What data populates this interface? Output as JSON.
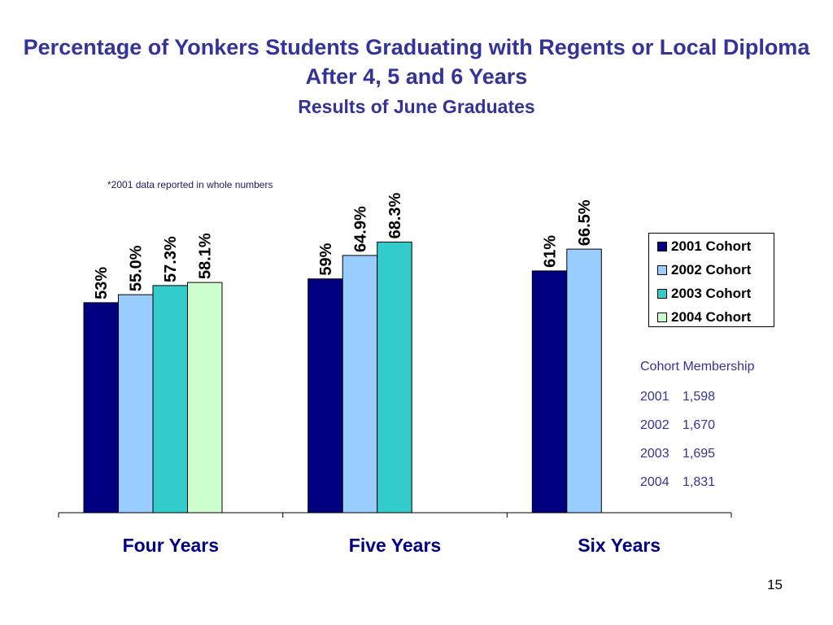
{
  "title": "Percentage of Yonkers Students Graduating with Regents or Local Diploma After 4, 5 and 6 Years",
  "subtitle": "Results of June Graduates",
  "note": "*2001 data reported in whole numbers",
  "page_number": "15",
  "colors": {
    "title": "#333399",
    "2001 Cohort": "#000080",
    "2002 Cohort": "#99CCFF",
    "2003 Cohort": "#33CCCC",
    "2004 Cohort": "#CCFFCC"
  },
  "chart_data": {
    "type": "bar",
    "title": "Percentage of Yonkers Students Graduating with Regents or Local Diploma After 4, 5 and 6 Years",
    "subtitle": "Results of June Graduates",
    "categories": [
      "Four Years",
      "Five Years",
      "Six Years"
    ],
    "ylim": [
      0,
      100
    ],
    "grid": false,
    "legend_position": "right",
    "series": [
      {
        "name": "2001 Cohort",
        "values": [
          53,
          59,
          61
        ],
        "labels": [
          "53%",
          "59%",
          "61%"
        ]
      },
      {
        "name": "2002 Cohort",
        "values": [
          55.0,
          64.9,
          66.5
        ],
        "labels": [
          "55.0%",
          "64.9%",
          "66.5%"
        ]
      },
      {
        "name": "2003 Cohort",
        "values": [
          57.3,
          68.3,
          null
        ],
        "labels": [
          "57.3%",
          "68.3%",
          null
        ]
      },
      {
        "name": "2004 Cohort",
        "values": [
          58.1,
          null,
          null
        ],
        "labels": [
          "58.1%",
          null,
          null
        ]
      }
    ]
  },
  "cohort_membership": {
    "heading": "Cohort Membership",
    "rows": [
      {
        "year": "2001",
        "count": "1,598"
      },
      {
        "year": "2002",
        "count": "1,670"
      },
      {
        "year": "2003",
        "count": "1,695"
      },
      {
        "year": "2004",
        "count": "1,831"
      }
    ]
  }
}
